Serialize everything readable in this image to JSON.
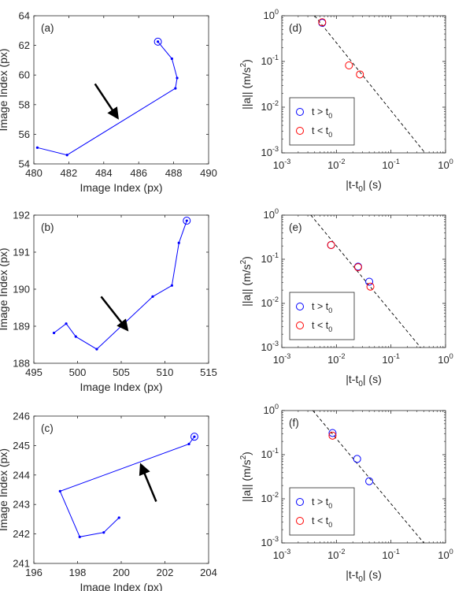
{
  "chart_data": [
    {
      "panel": "(a)",
      "type": "line",
      "xlabel": "Image Index (px)",
      "ylabel": "Image Index (px)",
      "xlim": [
        480,
        490
      ],
      "ylim": [
        54,
        64
      ],
      "xticks": [
        480,
        482,
        484,
        486,
        488,
        490
      ],
      "yticks": [
        54,
        56,
        58,
        60,
        62,
        64
      ],
      "color": "#0000ff",
      "x": [
        480.2,
        481.9,
        488.1,
        488.2,
        487.9,
        487.1
      ],
      "y": [
        55.1,
        54.6,
        59.1,
        59.8,
        61.1,
        62.25
      ],
      "start_marker": [
        487.1,
        62.25
      ],
      "arrow": {
        "from": [
          483.5,
          59.4
        ],
        "to": [
          484.8,
          57.1
        ]
      }
    },
    {
      "panel": "(b)",
      "type": "line",
      "xlabel": "Image Index (px)",
      "ylabel": "Image Index (px)",
      "xlim": [
        495,
        515
      ],
      "ylim": [
        188,
        192
      ],
      "xticks": [
        495,
        500,
        505,
        510,
        515
      ],
      "yticks": [
        188,
        189,
        190,
        191,
        192
      ],
      "color": "#0000ff",
      "x": [
        497.3,
        498.7,
        499.8,
        502.2,
        508.6,
        510.8,
        511.6,
        512.5
      ],
      "y": [
        188.82,
        189.07,
        188.72,
        188.38,
        189.8,
        190.1,
        191.25,
        191.85
      ],
      "start_marker": [
        512.5,
        191.85
      ],
      "arrow": {
        "from": [
          502.7,
          189.8
        ],
        "to": [
          505.7,
          188.9
        ]
      }
    },
    {
      "panel": "(c)",
      "type": "line",
      "xlabel": "Image Index (px)",
      "ylabel": "Image Index (px)",
      "xlim": [
        196,
        204
      ],
      "ylim": [
        241,
        246
      ],
      "xticks": [
        196,
        198,
        200,
        202,
        204
      ],
      "yticks": [
        241,
        242,
        243,
        244,
        245,
        246
      ],
      "color": "#0000ff",
      "x": [
        199.9,
        199.2,
        198.1,
        197.2,
        203.1,
        203.35
      ],
      "y": [
        242.55,
        242.05,
        241.9,
        243.45,
        245.05,
        245.3
      ],
      "start_marker": [
        203.35,
        245.3
      ],
      "arrow": {
        "from": [
          201.6,
          243.1
        ],
        "to": [
          200.9,
          244.35
        ]
      }
    },
    {
      "panel": "(d)",
      "type": "scatter",
      "scale": "log",
      "xlabel_main": "|t-t",
      "xlabel_sub": "0",
      "xlabel_end": "| (s)",
      "ylabel_main": "||a|| (m/s",
      "ylabel_sup": "2",
      "ylabel_end": ")",
      "xlim": [
        0.001,
        1
      ],
      "ylim": [
        0.001,
        1
      ],
      "xtick_exp": [
        "-3",
        "-2",
        "-1",
        "0"
      ],
      "ytick_exp": [
        "-3",
        "-2",
        "-1",
        "0"
      ],
      "legend": {
        "blue_main": "t > t",
        "blue_sub": "0",
        "red_main": "t < t",
        "red_sub": "0",
        "placement": "bottom-left"
      },
      "series": [
        {
          "color": "#0000ff",
          "x": [
            0.0055
          ],
          "y": [
            0.7
          ]
        },
        {
          "color": "#ff0000",
          "x": [
            0.0055,
            0.017,
            0.027
          ],
          "y": [
            0.72,
            0.082,
            0.052
          ]
        }
      ],
      "fit_line": {
        "x": [
          0.004,
          0.42
        ],
        "y": [
          1.0,
          0.001
        ]
      }
    },
    {
      "panel": "(e)",
      "type": "scatter",
      "scale": "log",
      "xlabel_main": "|t-t",
      "xlabel_sub": "0",
      "xlabel_end": "| (s)",
      "ylabel_main": "||a|| (m/s",
      "ylabel_sup": "2",
      "ylabel_end": ")",
      "xlim": [
        0.001,
        1
      ],
      "ylim": [
        0.001,
        1
      ],
      "xtick_exp": [
        "-3",
        "-2",
        "-1",
        "0"
      ],
      "ytick_exp": [
        "-3",
        "-2",
        "-1",
        "0"
      ],
      "legend": {
        "blue_main": "t > t",
        "blue_sub": "0",
        "red_main": "t < t",
        "red_sub": "0",
        "placement": "bottom-left"
      },
      "series": [
        {
          "color": "#0000ff",
          "x": [
            0.008,
            0.025,
            0.04
          ],
          "y": [
            0.21,
            0.068,
            0.031
          ]
        },
        {
          "color": "#ff0000",
          "x": [
            0.008,
            0.025,
            0.042
          ],
          "y": [
            0.21,
            0.066,
            0.024
          ]
        }
      ],
      "fit_line": {
        "x": [
          0.0034,
          0.35
        ],
        "y": [
          1.0,
          0.001
        ]
      }
    },
    {
      "panel": "(f)",
      "type": "scatter",
      "scale": "log",
      "xlabel_main": "|t-t",
      "xlabel_sub": "0",
      "xlabel_end": "| (s)",
      "ylabel_main": "||a|| (m/s",
      "ylabel_sup": "2",
      "ylabel_end": ")",
      "xlim": [
        0.001,
        1
      ],
      "ylim": [
        0.001,
        1
      ],
      "xtick_exp": [
        "-3",
        "-2",
        "-1",
        "0"
      ],
      "ytick_exp": [
        "-3",
        "-2",
        "-1",
        "0"
      ],
      "legend": {
        "blue_main": "t > t",
        "blue_sub": "0",
        "red_main": "t < t",
        "red_sub": "0",
        "placement": "bottom-left"
      },
      "series": [
        {
          "color": "#0000ff",
          "x": [
            0.0085,
            0.024,
            0.04
          ],
          "y": [
            0.31,
            0.08,
            0.025
          ]
        },
        {
          "color": "#ff0000",
          "x": [
            0.0085
          ],
          "y": [
            0.27
          ]
        }
      ],
      "fit_line": {
        "x": [
          0.0037,
          0.4
        ],
        "y": [
          1.0,
          0.001
        ]
      }
    }
  ]
}
